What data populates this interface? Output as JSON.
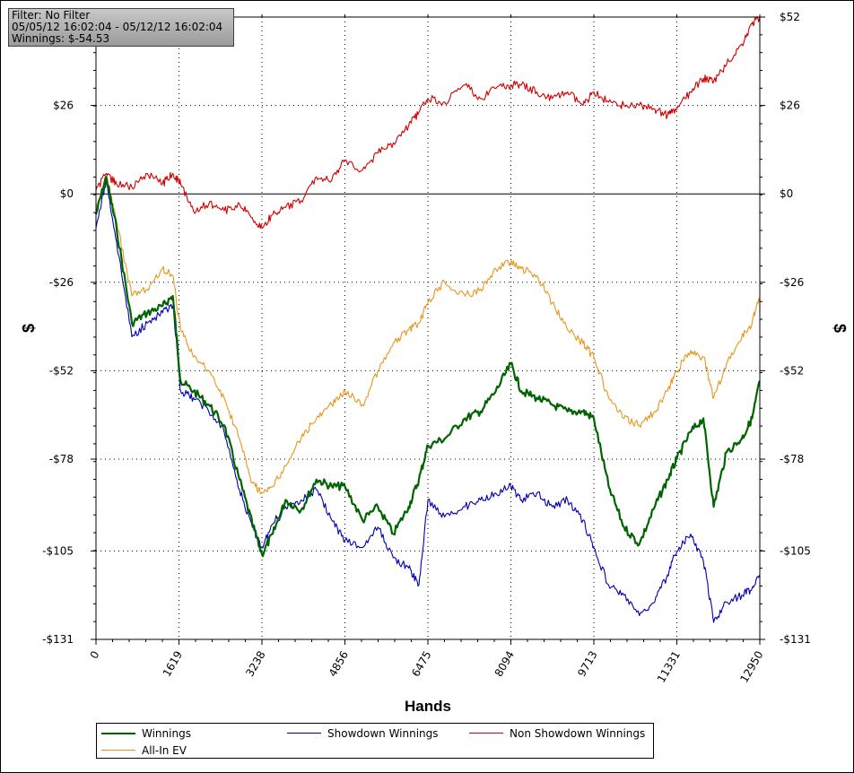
{
  "info_box": {
    "filter": "Filter: No Filter",
    "date_range": "05/05/12 16:02:04 - 05/12/12 16:02:04",
    "winnings": "Winnings: $-54.53"
  },
  "chart_data": {
    "type": "line",
    "xlabel": "Hands",
    "ylabel": "$",
    "xlim": [
      0,
      12950
    ],
    "ylim": [
      -131,
      52
    ],
    "x_ticks": [
      0,
      1619,
      3238,
      4856,
      6475,
      8094,
      9713,
      11331,
      12950
    ],
    "y_ticks": [
      52,
      26,
      0,
      -26,
      -52,
      -78,
      -105,
      -131
    ],
    "y_tick_labels": [
      "$52",
      "$26",
      "$0",
      "-$26",
      "-$52",
      "-$78",
      "-$105",
      "-$131"
    ],
    "grid": "dotted",
    "legend_position": "bottom",
    "series": [
      {
        "name": "Winnings",
        "color": "#006400",
        "x": [
          0,
          200,
          400,
          700,
          1000,
          1300,
          1500,
          1650,
          1900,
          2200,
          2500,
          2800,
          3050,
          3238,
          3450,
          3700,
          4000,
          4300,
          4600,
          4856,
          5200,
          5500,
          5800,
          6100,
          6300,
          6475,
          6800,
          7200,
          7500,
          7800,
          8094,
          8300,
          8600,
          8900,
          9200,
          9500,
          9713,
          10000,
          10300,
          10600,
          10900,
          11150,
          11331,
          11600,
          11850,
          12050,
          12300,
          12600,
          12800,
          12950
        ],
        "values": [
          -6,
          5,
          -10,
          -38,
          -35,
          -33,
          -30,
          -55,
          -58,
          -62,
          -68,
          -84,
          -97,
          -106,
          -100,
          -90,
          -93,
          -84,
          -86,
          -86,
          -96,
          -92,
          -100,
          -92,
          -84,
          -74,
          -72,
          -66,
          -64,
          -58,
          -50,
          -58,
          -60,
          -62,
          -64,
          -64,
          -66,
          -86,
          -98,
          -103,
          -92,
          -84,
          -78,
          -70,
          -66,
          -92,
          -76,
          -72,
          -66,
          -55
        ]
      },
      {
        "name": "Showdown Winnings",
        "color": "#0000b0",
        "x": [
          0,
          200,
          400,
          700,
          1000,
          1300,
          1500,
          1650,
          1900,
          2200,
          2500,
          2800,
          3050,
          3238,
          3450,
          3700,
          4000,
          4300,
          4600,
          4856,
          5200,
          5500,
          5800,
          6100,
          6300,
          6475,
          6800,
          7200,
          7500,
          7800,
          8094,
          8300,
          8600,
          8900,
          9200,
          9500,
          9713,
          10000,
          10300,
          10600,
          10900,
          11150,
          11331,
          11600,
          11850,
          12050,
          12300,
          12600,
          12800,
          12950
        ],
        "values": [
          -10,
          4,
          -14,
          -42,
          -38,
          -35,
          -33,
          -58,
          -60,
          -64,
          -70,
          -87,
          -98,
          -104,
          -97,
          -92,
          -90,
          -87,
          -96,
          -102,
          -104,
          -98,
          -107,
          -110,
          -115,
          -90,
          -95,
          -92,
          -90,
          -88,
          -86,
          -90,
          -88,
          -92,
          -90,
          -96,
          -104,
          -115,
          -118,
          -124,
          -120,
          -112,
          -105,
          -100,
          -108,
          -126,
          -120,
          -118,
          -116,
          -112
        ]
      },
      {
        "name": "Non Showdown Winnings",
        "color": "#d00000",
        "x": [
          0,
          200,
          400,
          700,
          1000,
          1300,
          1500,
          1650,
          1900,
          2200,
          2500,
          2800,
          3050,
          3238,
          3450,
          3700,
          4000,
          4300,
          4600,
          4856,
          5200,
          5500,
          5800,
          6100,
          6300,
          6475,
          6800,
          7200,
          7500,
          7800,
          8094,
          8300,
          8600,
          8900,
          9200,
          9500,
          9713,
          10000,
          10300,
          10600,
          10900,
          11150,
          11331,
          11600,
          11850,
          12050,
          12300,
          12600,
          12800,
          12950
        ],
        "values": [
          1,
          6,
          3,
          2,
          6,
          3,
          6,
          3,
          -5,
          -3,
          -5,
          -3,
          -7,
          -10,
          -6,
          -4,
          -2,
          5,
          4,
          10,
          7,
          12,
          15,
          20,
          24,
          28,
          27,
          32,
          28,
          31,
          32,
          32,
          30,
          28,
          30,
          26,
          30,
          27,
          26,
          26,
          25,
          23,
          25,
          30,
          34,
          33,
          38,
          44,
          50,
          52
        ]
      },
      {
        "name": "All-In EV",
        "color": "#e8961e",
        "x": [
          0,
          200,
          400,
          700,
          1000,
          1300,
          1500,
          1650,
          1900,
          2200,
          2500,
          2800,
          3050,
          3238,
          3450,
          3700,
          4000,
          4300,
          4600,
          4856,
          5200,
          5500,
          5800,
          6100,
          6300,
          6475,
          6800,
          7200,
          7500,
          7800,
          8094,
          8300,
          8600,
          8900,
          9200,
          9500,
          9713,
          10000,
          10300,
          10600,
          10900,
          11150,
          11331,
          11600,
          11850,
          12050,
          12300,
          12600,
          12800,
          12950
        ],
        "values": [
          -5,
          5,
          -8,
          -30,
          -28,
          -22,
          -24,
          -40,
          -48,
          -52,
          -60,
          -72,
          -85,
          -88,
          -86,
          -80,
          -72,
          -66,
          -62,
          -58,
          -62,
          -52,
          -44,
          -40,
          -38,
          -32,
          -26,
          -30,
          -28,
          -22,
          -20,
          -22,
          -24,
          -32,
          -40,
          -44,
          -48,
          -60,
          -66,
          -68,
          -64,
          -58,
          -52,
          -46,
          -48,
          -60,
          -50,
          -42,
          -38,
          -30
        ]
      }
    ]
  },
  "legend": {
    "items": [
      {
        "label": "Winnings",
        "color": "#006400"
      },
      {
        "label": "Showdown Winnings",
        "color": "#0000b0"
      },
      {
        "label": "Non Showdown Winnings",
        "color": "#d00000"
      },
      {
        "label": "All-In EV",
        "color": "#e8961e"
      }
    ]
  }
}
